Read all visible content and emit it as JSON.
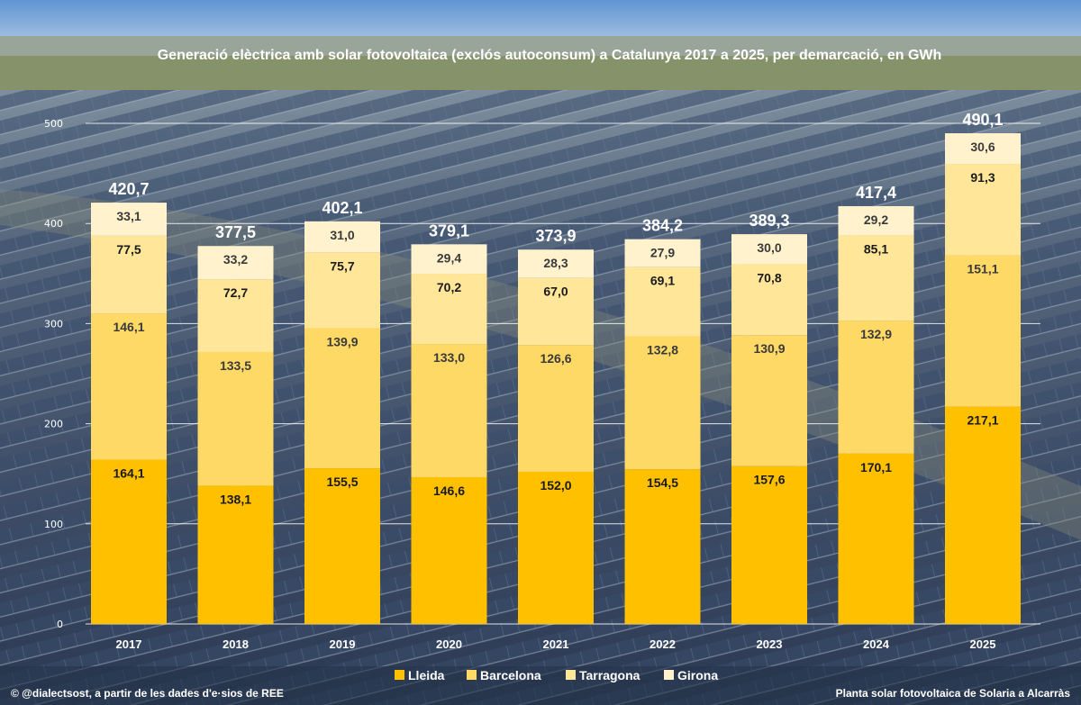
{
  "chart_data": {
    "type": "bar",
    "stacked": true,
    "title": "Generació elèctrica amb solar fotovoltaica (exclós autoconsum) a Catalunya 2017 a 2025, per demarcació, en GWh",
    "xlabel": "",
    "ylabel": "",
    "ylim": [
      0,
      500
    ],
    "yticks": [
      "0",
      "100",
      "200",
      "300",
      "400",
      "500"
    ],
    "ytick_values": [
      0,
      100,
      200,
      300,
      400,
      500
    ],
    "grid": true,
    "legend_position": "bottom",
    "categories": [
      "2017",
      "2018",
      "2019",
      "2020",
      "2021",
      "2022",
      "2023",
      "2024",
      "2025"
    ],
    "series": [
      {
        "name": "Lleida",
        "color": "#ffc000",
        "values": [
          164.1,
          138.1,
          155.5,
          146.6,
          152.0,
          154.5,
          157.6,
          170.1,
          217.1
        ],
        "labels": [
          "164,1",
          "138,1",
          "155,5",
          "146,6",
          "152,0",
          "154,5",
          "157,6",
          "170,1",
          "217,1"
        ]
      },
      {
        "name": "Barcelona",
        "color": "#ffd966",
        "values": [
          146.1,
          133.5,
          139.9,
          133.0,
          126.6,
          132.8,
          130.9,
          132.9,
          151.1
        ],
        "labels": [
          "146,1",
          "133,5",
          "139,9",
          "133,0",
          "126,6",
          "132,8",
          "130,9",
          "132,9",
          "151,1"
        ]
      },
      {
        "name": "Tarragona",
        "color": "#ffe699",
        "values": [
          77.5,
          72.7,
          75.7,
          70.2,
          67.0,
          69.1,
          70.8,
          85.1,
          91.3
        ],
        "labels": [
          "77,5",
          "72,7",
          "75,7",
          "70,2",
          "67,0",
          "69,1",
          "70,8",
          "85,1",
          "91,3"
        ]
      },
      {
        "name": "Girona",
        "color": "#fff2cc",
        "values": [
          33.1,
          33.2,
          31.0,
          29.4,
          28.3,
          27.9,
          30.0,
          29.2,
          30.6
        ],
        "labels": [
          "33,1",
          "33,2",
          "31,0",
          "29,4",
          "28,3",
          "27,9",
          "30,0",
          "29,2",
          "30,6"
        ]
      }
    ],
    "totals": [
      420.7,
      377.5,
      402.1,
      379.1,
      373.9,
      384.2,
      389.3,
      417.4,
      490.1
    ],
    "total_labels": [
      "420,7",
      "377,5",
      "402,1",
      "379,1",
      "373,9",
      "384,2",
      "389,3",
      "417,4",
      "490,1"
    ]
  },
  "footer": {
    "credit": "© @dialectsost, a partir de les dades d'e·sios de REE",
    "photo_caption": "Planta solar fotovoltaica de Solaria a Alcarràs"
  },
  "colors": {
    "sky": "#8fb4dc",
    "panel": "#3b4f6b",
    "field": "#6e7a52",
    "text_dark": "#1a1a1a",
    "text_mid": "#3a3a3a"
  }
}
